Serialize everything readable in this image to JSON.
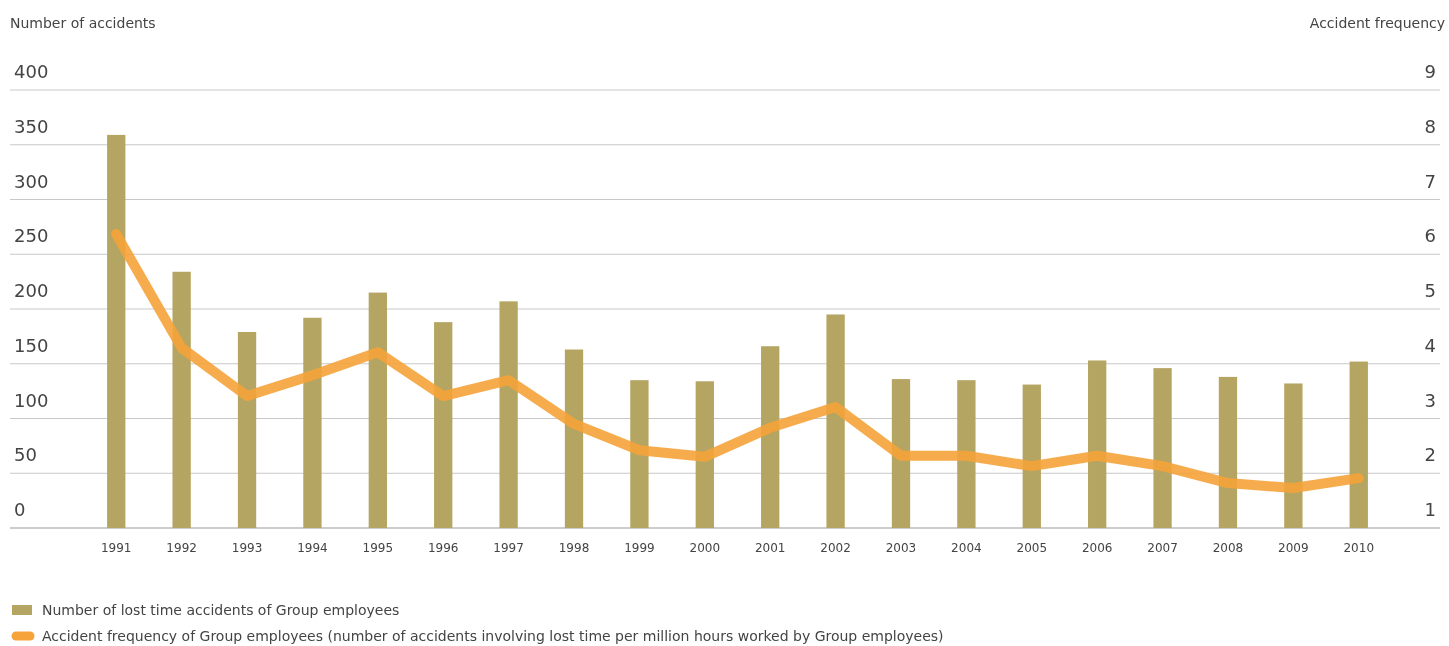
{
  "chart_data": {
    "type": "bar",
    "ylabel": "Number of accidents",
    "y2label": "Accident frequency",
    "categories": [
      "1991",
      "1992",
      "1993",
      "1994",
      "1995",
      "1996",
      "1997",
      "1998",
      "1999",
      "2000",
      "2001",
      "2002",
      "2003",
      "2004",
      "2005",
      "2006",
      "2007",
      "2008",
      "2009",
      "2010"
    ],
    "series": [
      {
        "name": "Number of lost time accidents of Group employees",
        "color": "#b5a562",
        "values": [
          359,
          234,
          179,
          192,
          215,
          188,
          207,
          163,
          135,
          134,
          166,
          195,
          136,
          135,
          131,
          153,
          146,
          138,
          132,
          152
        ]
      },
      {
        "name": "Accident frequency of Group employees (number of accidents involving lost time per million hours worked by Group employees)",
        "type": "line",
        "axis": "y2",
        "color": "#f5a33a",
        "values": [
          6.37,
          4.29,
          3.41,
          3.79,
          4.21,
          3.41,
          3.7,
          2.9,
          2.42,
          2.3,
          2.83,
          3.21,
          2.32,
          2.32,
          2.13,
          2.32,
          2.13,
          1.82,
          1.73,
          1.91
        ]
      }
    ],
    "ylim": [
      0,
      400
    ],
    "yticks": [
      0,
      50,
      100,
      150,
      200,
      250,
      300,
      350,
      400
    ],
    "y2lim": [
      1,
      9
    ],
    "y2ticks": [
      1,
      2,
      3,
      4,
      5,
      6,
      7,
      8,
      9
    ],
    "grid": "y",
    "legend": "bottom left"
  }
}
